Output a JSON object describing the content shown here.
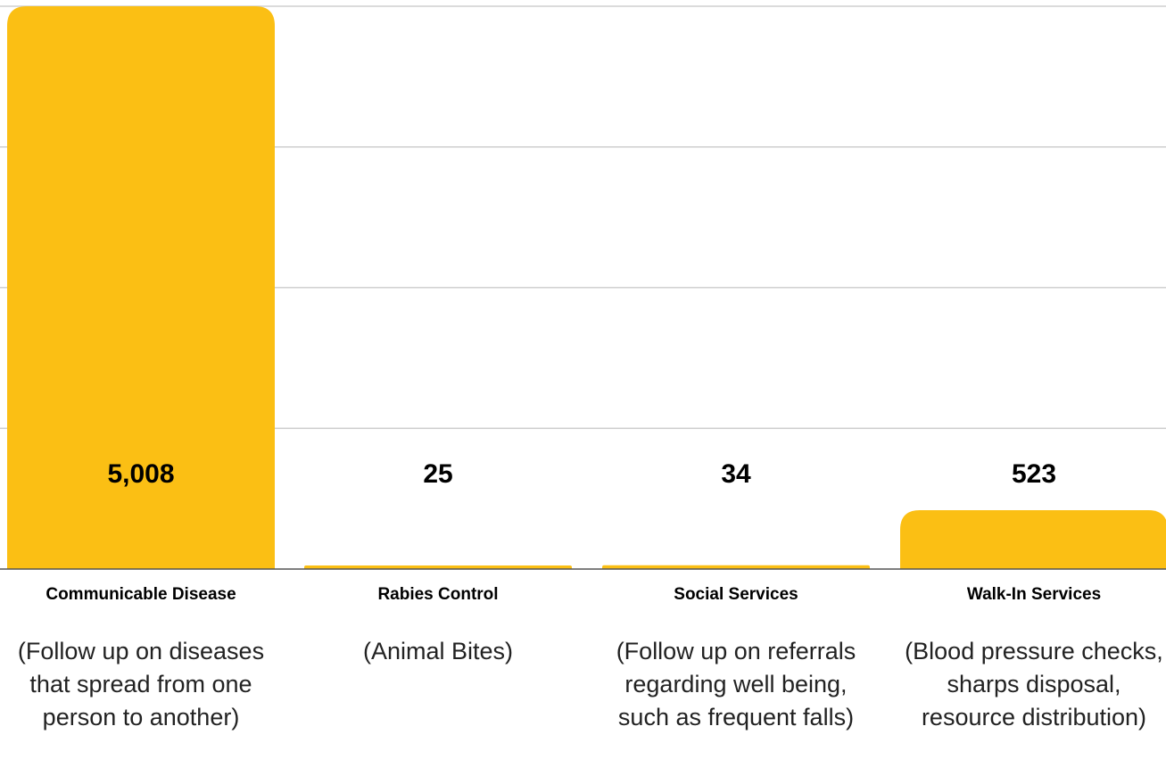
{
  "chart_data": {
    "type": "bar",
    "categories": [
      "Communicable Disease",
      "Rabies Control",
      "Social Services",
      "Walk-In Services"
    ],
    "values": [
      5008,
      25,
      34,
      523
    ],
    "value_labels": [
      "5,008",
      "25",
      "34",
      "523"
    ],
    "descriptions": [
      "(Follow up on diseases that spread from one person to another)",
      "(Animal Bites)",
      "(Follow up on referrals regarding well being, such as frequent falls)",
      "(Blood pressure checks, sharps disposal, resource distribution)"
    ],
    "ylim": [
      0,
      5000
    ],
    "grid": true,
    "bar_color": "#FBBF14",
    "title": "",
    "xlabel": "",
    "ylabel": ""
  }
}
